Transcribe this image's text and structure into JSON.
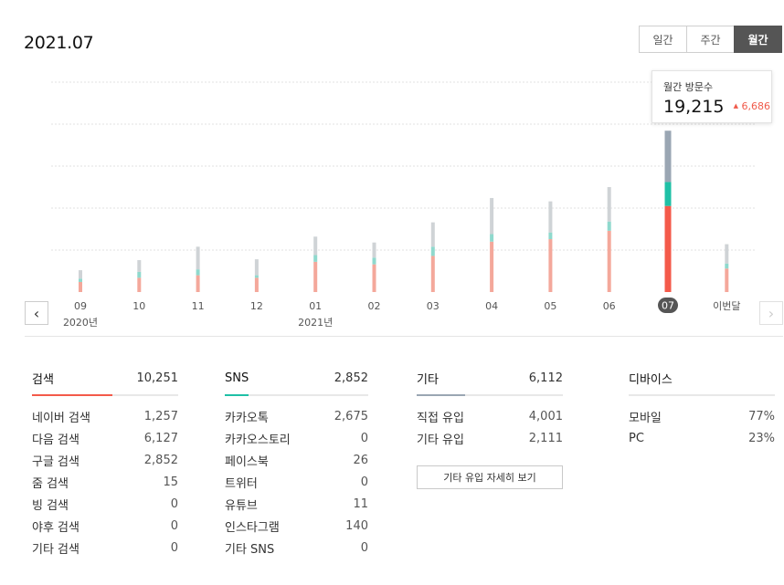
{
  "header": {
    "period": "2021.07"
  },
  "tabs": [
    {
      "label": "일간",
      "active": false
    },
    {
      "label": "주간",
      "active": false
    },
    {
      "label": "월간",
      "active": true
    }
  ],
  "tooltip": {
    "label": "월간 방문수",
    "value": "19,215",
    "delta": "6,686"
  },
  "chart_data": {
    "type": "bar",
    "stacked": true,
    "categories": [
      "09",
      "10",
      "11",
      "12",
      "01",
      "02",
      "03",
      "04",
      "05",
      "06",
      "07",
      "이번달"
    ],
    "year_labels": [
      {
        "at": "09",
        "text": "2020년"
      },
      {
        "at": "01",
        "text": "2021년"
      }
    ],
    "selected": "07",
    "series": [
      {
        "key": "search",
        "values": [
          1200,
          1700,
          2000,
          1700,
          3600,
          3300,
          4300,
          6000,
          6300,
          7300,
          10251,
          2800
        ]
      },
      {
        "key": "sns",
        "values": [
          400,
          700,
          700,
          300,
          800,
          800,
          1100,
          900,
          800,
          1100,
          2852,
          600
        ]
      },
      {
        "key": "etc",
        "values": [
          1000,
          1400,
          2700,
          1900,
          2200,
          1800,
          2900,
          4300,
          3700,
          4100,
          6112,
          2300
        ]
      }
    ],
    "colors": {
      "search": "#f4a89b",
      "sns": "#8fd9cd",
      "etc": "#cfd3d6",
      "search_selected": "#f45a4a",
      "sns_selected": "#1fc0a6",
      "etc_selected": "#9aa6b3"
    },
    "grid": true,
    "ylim": [
      0,
      25000
    ]
  },
  "categories": [
    {
      "title": "검색",
      "total": "10,251",
      "accent": "#f45a4a",
      "rows": [
        {
          "label": "네이버 검색",
          "value": "1,257"
        },
        {
          "label": "다음 검색",
          "value": "6,127"
        },
        {
          "label": "구글 검색",
          "value": "2,852"
        },
        {
          "label": "줌 검색",
          "value": "15"
        },
        {
          "label": "빙 검색",
          "value": "0"
        },
        {
          "label": "야후 검색",
          "value": "0"
        },
        {
          "label": "기타 검색",
          "value": "0"
        }
      ]
    },
    {
      "title": "SNS",
      "total": "2,852",
      "accent": "#1fc0a6",
      "rows": [
        {
          "label": "카카오톡",
          "value": "2,675"
        },
        {
          "label": "카카오스토리",
          "value": "0"
        },
        {
          "label": "페이스북",
          "value": "26"
        },
        {
          "label": "트위터",
          "value": "0"
        },
        {
          "label": "유튜브",
          "value": "11"
        },
        {
          "label": "인스타그램",
          "value": "140"
        },
        {
          "label": "기타 SNS",
          "value": "0"
        }
      ]
    },
    {
      "title": "기타",
      "total": "6,112",
      "accent": "#9aa6b3",
      "rows": [
        {
          "label": "직접 유입",
          "value": "4,001"
        },
        {
          "label": "기타 유입",
          "value": "2,111"
        }
      ],
      "button_label": "기타 유입 자세히 보기"
    },
    {
      "title": "디바이스",
      "total": "",
      "accent": "",
      "rows": [
        {
          "label": "모바일",
          "value": "77%"
        },
        {
          "label": "PC",
          "value": "23%"
        }
      ]
    }
  ]
}
